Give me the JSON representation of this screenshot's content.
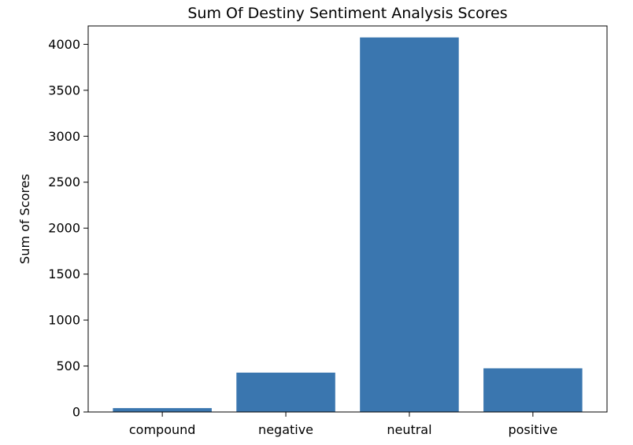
{
  "chart_data": {
    "type": "bar",
    "title": "Sum Of Destiny Sentiment Analysis Scores",
    "xlabel": "",
    "ylabel": "Sum of Scores",
    "categories": [
      "compound",
      "negative",
      "neutral",
      "positive"
    ],
    "values": [
      42,
      428,
      4075,
      475
    ],
    "ylim": [
      0,
      4200
    ],
    "yticks": [
      0,
      500,
      1000,
      1500,
      2000,
      2500,
      3000,
      3500,
      4000
    ],
    "ytick_labels": [
      "0",
      "500",
      "1000",
      "1500",
      "2000",
      "2500",
      "3000",
      "3500",
      "4000"
    ],
    "bar_color": "#3a76af",
    "grid": false,
    "legend": "none"
  }
}
